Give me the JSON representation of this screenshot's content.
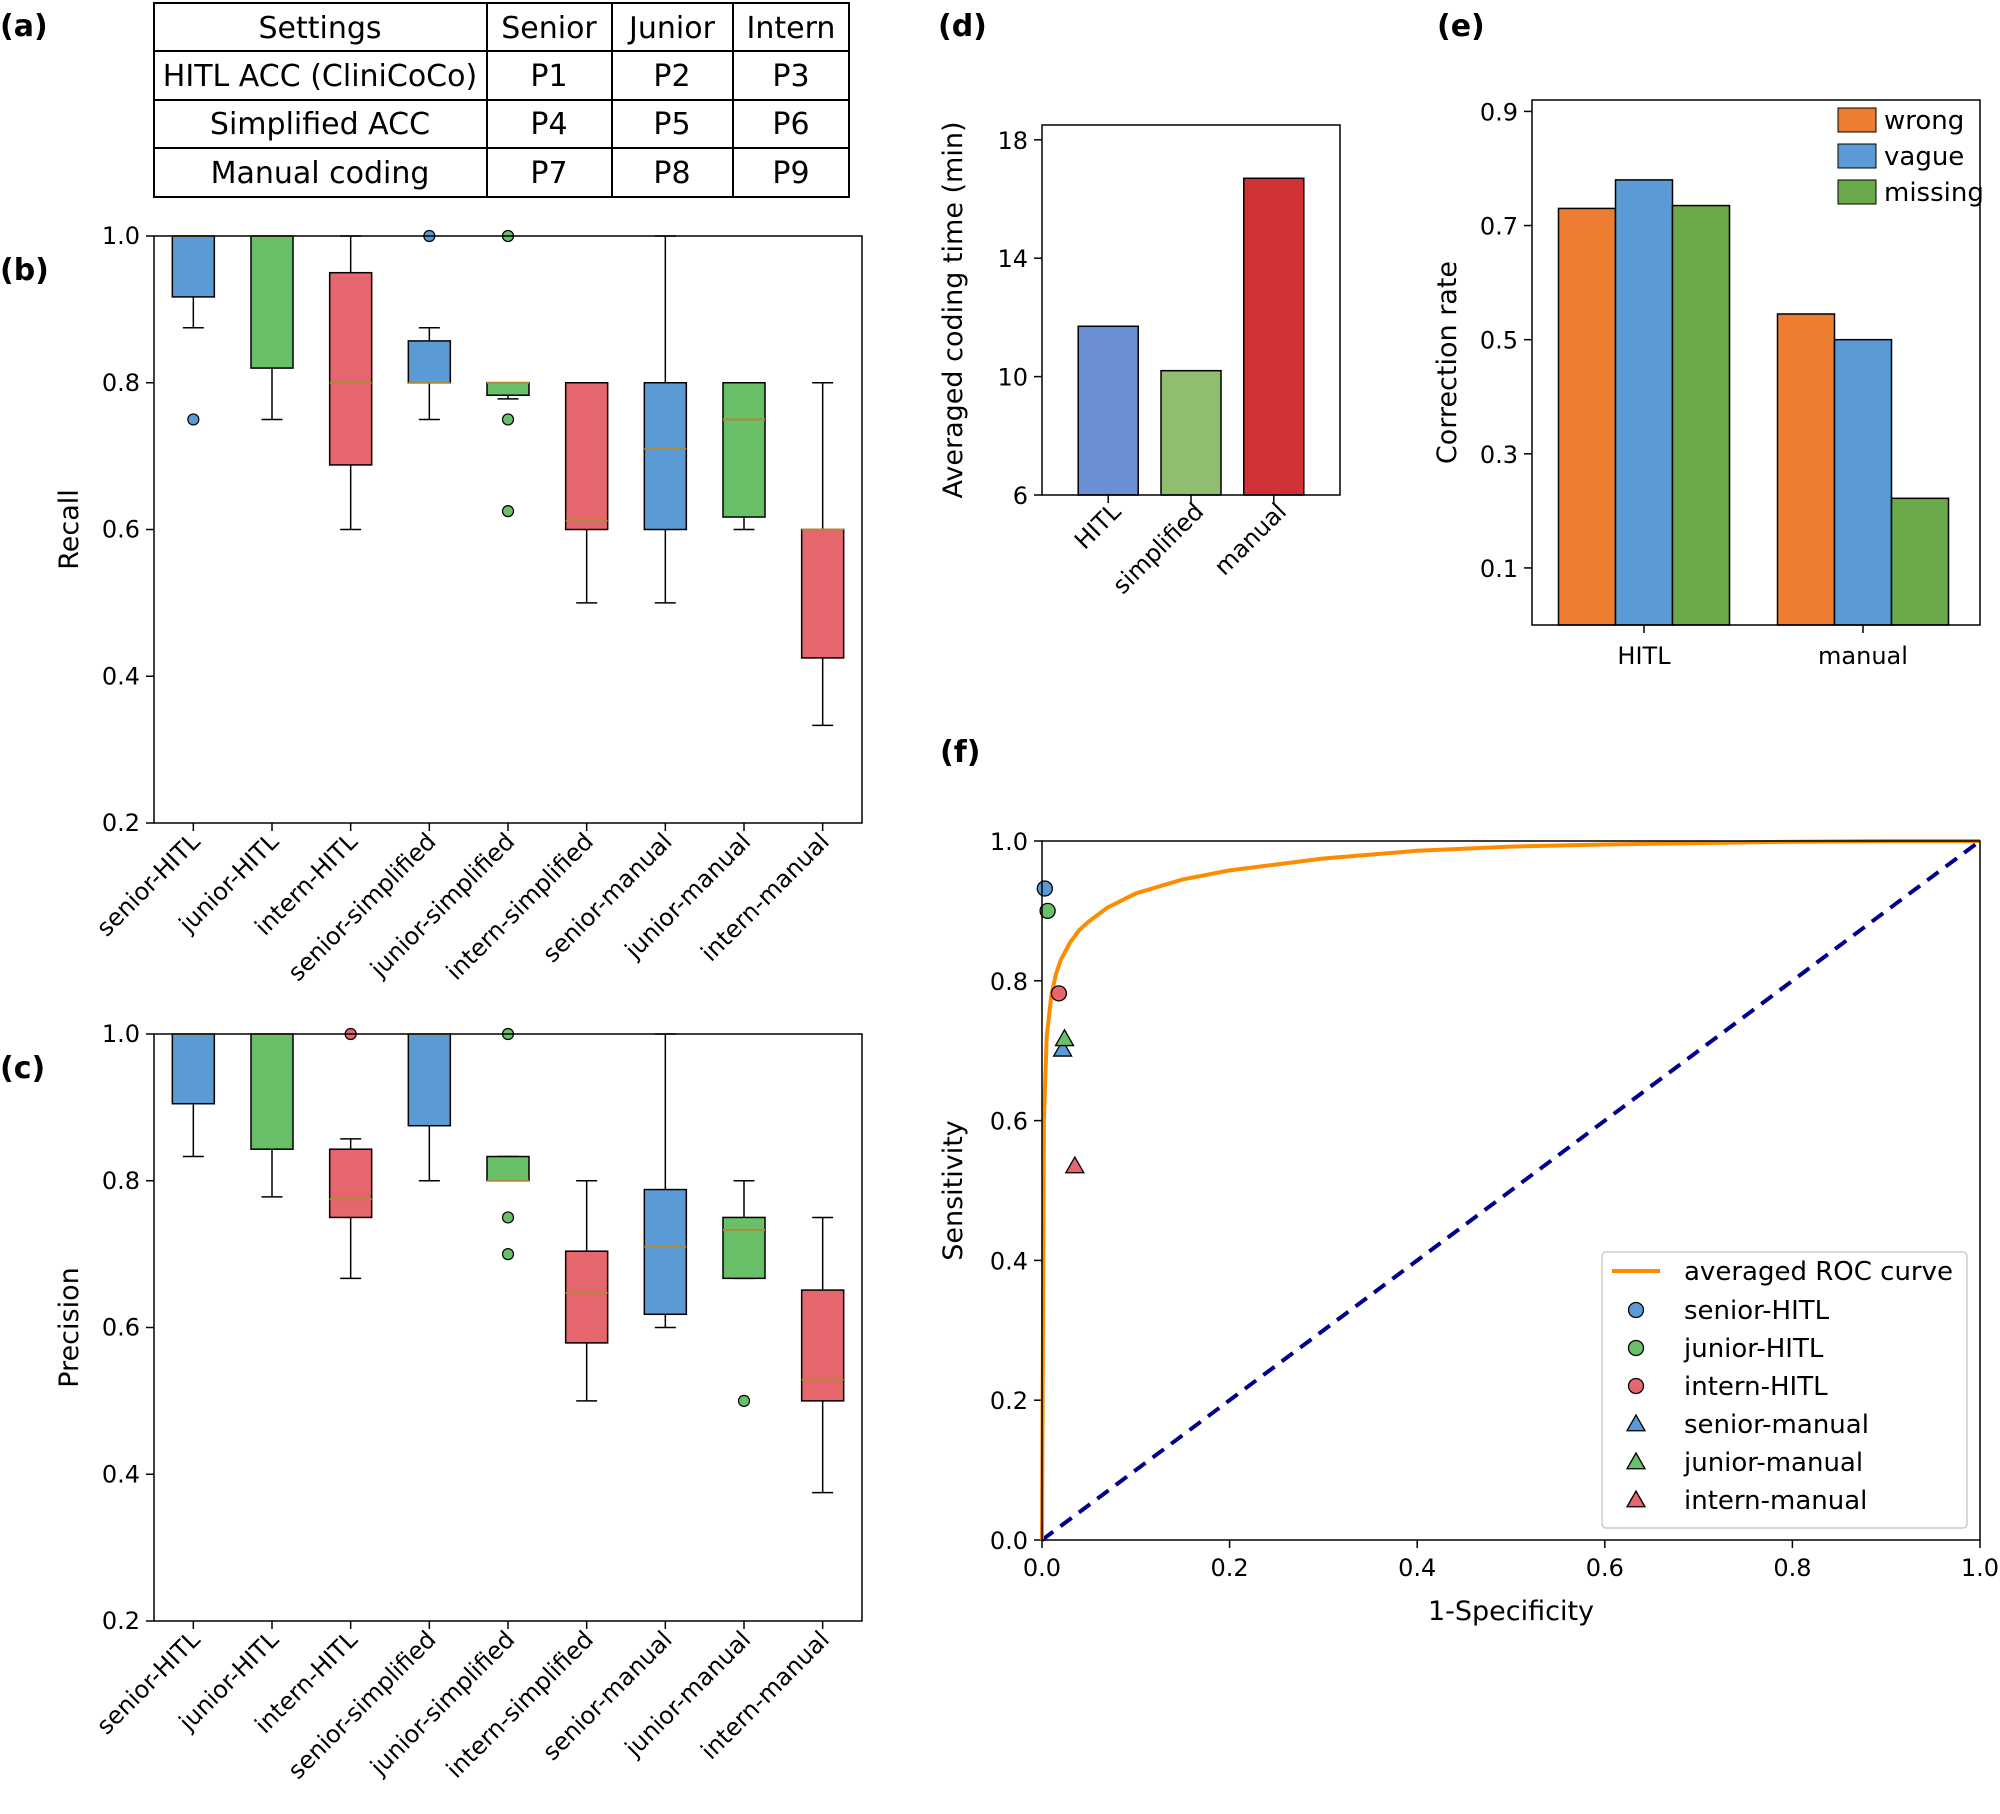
{
  "panels": {
    "a": "(a)",
    "b": "(b)",
    "c": "(c)",
    "d": "(d)",
    "e": "(e)",
    "f": "(f)"
  },
  "settings_table": {
    "header": [
      "Settings",
      "Senior",
      "Junior",
      "Intern"
    ],
    "rows": [
      [
        "HITL ACC (CliniCoCo)",
        "P1",
        "P2",
        "P3"
      ],
      [
        "Simplified ACC",
        "P4",
        "P5",
        "P6"
      ],
      [
        "Manual coding",
        "P7",
        "P8",
        "P9"
      ]
    ]
  },
  "colors": {
    "blue": "#5b9bd5",
    "green": "#6abf69",
    "red": "#e5666c",
    "orange": "#ed7d31",
    "median": "#b08a3a",
    "roc": "#ff8c00",
    "diag": "#00008b"
  },
  "chart_data": [
    {
      "id": "b",
      "type": "box",
      "ylabel": "Recall",
      "ylim": [
        0.2,
        1.0
      ],
      "yticks": [
        "0.2",
        "0.4",
        "0.6",
        "0.8",
        "1.0"
      ],
      "categories": [
        "senior-HITL",
        "junior-HITL",
        "intern-HITL",
        "senior-simplified",
        "junior-simplified",
        "intern-simplified",
        "senior-manual",
        "junior-manual",
        "intern-manual"
      ],
      "box_colors": [
        "blue",
        "green",
        "red",
        "blue",
        "green",
        "red",
        "blue",
        "green",
        "red"
      ],
      "boxes": [
        {
          "q1": 0.917,
          "median": 1.0,
          "q3": 1.0,
          "whislo": 0.875,
          "whishi": 1.0,
          "fliers": [
            0.75
          ]
        },
        {
          "q1": 0.82,
          "median": 1.0,
          "q3": 1.0,
          "whislo": 0.75,
          "whishi": 1.0,
          "fliers": []
        },
        {
          "q1": 0.688,
          "median": 0.8,
          "q3": 0.95,
          "whislo": 0.6,
          "whishi": 1.0,
          "fliers": []
        },
        {
          "q1": 0.8,
          "median": 0.8,
          "q3": 0.857,
          "whislo": 0.75,
          "whishi": 0.875,
          "fliers": [
            1.0
          ]
        },
        {
          "q1": 0.783,
          "median": 0.8,
          "q3": 0.8,
          "whislo": 0.778,
          "whishi": 0.8,
          "fliers": [
            1.0,
            0.75,
            0.625
          ]
        },
        {
          "q1": 0.6,
          "median": 0.612,
          "q3": 0.8,
          "whislo": 0.5,
          "whishi": 0.8,
          "fliers": []
        },
        {
          "q1": 0.6,
          "median": 0.71,
          "q3": 0.8,
          "whislo": 0.5,
          "whishi": 1.0,
          "fliers": []
        },
        {
          "q1": 0.617,
          "median": 0.75,
          "q3": 0.8,
          "whislo": 0.6,
          "whishi": 0.8,
          "fliers": []
        },
        {
          "q1": 0.425,
          "median": 0.6,
          "q3": 0.6,
          "whislo": 0.333,
          "whishi": 0.8,
          "fliers": []
        }
      ]
    },
    {
      "id": "c",
      "type": "box",
      "ylabel": "Precision",
      "ylim": [
        0.2,
        1.0
      ],
      "yticks": [
        "0.2",
        "0.4",
        "0.6",
        "0.8",
        "1.0"
      ],
      "categories": [
        "senior-HITL",
        "junior-HITL",
        "intern-HITL",
        "senior-simplified",
        "junior-simplified",
        "intern-simplified",
        "senior-manual",
        "junior-manual",
        "intern-manual"
      ],
      "box_colors": [
        "blue",
        "green",
        "red",
        "blue",
        "green",
        "red",
        "blue",
        "green",
        "red"
      ],
      "boxes": [
        {
          "q1": 0.905,
          "median": 1.0,
          "q3": 1.0,
          "whislo": 0.833,
          "whishi": 1.0,
          "fliers": []
        },
        {
          "q1": 0.843,
          "median": 1.0,
          "q3": 1.0,
          "whislo": 0.778,
          "whishi": 1.0,
          "fliers": []
        },
        {
          "q1": 0.75,
          "median": 0.775,
          "q3": 0.843,
          "whislo": 0.667,
          "whishi": 0.857,
          "fliers": [
            1.0
          ]
        },
        {
          "q1": 0.875,
          "median": 1.0,
          "q3": 1.0,
          "whislo": 0.8,
          "whishi": 1.0,
          "fliers": []
        },
        {
          "q1": 0.8,
          "median": 0.8,
          "q3": 0.833,
          "whislo": 0.8,
          "whishi": 0.833,
          "fliers": [
            1.0,
            0.75,
            0.7
          ]
        },
        {
          "q1": 0.579,
          "median": 0.647,
          "q3": 0.704,
          "whislo": 0.5,
          "whishi": 0.8,
          "fliers": []
        },
        {
          "q1": 0.618,
          "median": 0.71,
          "q3": 0.788,
          "whislo": 0.6,
          "whishi": 1.0,
          "fliers": []
        },
        {
          "q1": 0.667,
          "median": 0.733,
          "q3": 0.75,
          "whislo": 0.667,
          "whishi": 0.8,
          "fliers": [
            0.5
          ]
        },
        {
          "q1": 0.5,
          "median": 0.529,
          "q3": 0.651,
          "whislo": 0.375,
          "whishi": 0.75,
          "fliers": []
        }
      ]
    },
    {
      "id": "d",
      "type": "bar",
      "ylabel": "Averaged coding time (min)",
      "ylim": [
        6,
        18.5
      ],
      "yticks": [
        6,
        10,
        14,
        18
      ],
      "categories": [
        "HITL",
        "simplified",
        "manual"
      ],
      "values": [
        11.7,
        10.2,
        16.7
      ],
      "bar_colors": [
        "#6b8fd4",
        "#8fbf6e",
        "#d03236"
      ]
    },
    {
      "id": "e",
      "type": "bar",
      "ylabel": "Correction rate",
      "ylim": [
        0.0,
        0.92
      ],
      "yticks": [
        "0.1",
        "0.3",
        "0.5",
        "0.7",
        "0.9"
      ],
      "categories": [
        "HITL",
        "manual"
      ],
      "series": [
        {
          "name": "wrong",
          "values": [
            0.73,
            0.545
          ],
          "color": "#ed7d31"
        },
        {
          "name": "vague",
          "values": [
            0.78,
            0.5
          ],
          "color": "#5b9bd5"
        },
        {
          "name": "missing",
          "values": [
            0.735,
            0.222
          ],
          "color": "#6aaa48"
        }
      ],
      "legend": "top-right"
    },
    {
      "id": "f",
      "type": "line",
      "xlabel": "1-Specificity",
      "ylabel": "Sensitivity",
      "xlim": [
        0.0,
        1.0
      ],
      "ylim": [
        0.0,
        1.0
      ],
      "xticks": [
        "0.0",
        "0.2",
        "0.4",
        "0.6",
        "0.8",
        "1.0"
      ],
      "yticks": [
        "0.0",
        "0.2",
        "0.4",
        "0.6",
        "0.8",
        "1.0"
      ],
      "roc_curve": {
        "name": "averaged ROC curve",
        "x": [
          0.0,
          0.002,
          0.005,
          0.01,
          0.015,
          0.02,
          0.03,
          0.04,
          0.05,
          0.07,
          0.1,
          0.15,
          0.2,
          0.3,
          0.4,
          0.5,
          0.6,
          0.7,
          0.8,
          0.9,
          1.0
        ],
        "y": [
          0.0,
          0.6,
          0.72,
          0.78,
          0.81,
          0.83,
          0.855,
          0.873,
          0.885,
          0.905,
          0.925,
          0.945,
          0.958,
          0.975,
          0.986,
          0.992,
          0.995,
          0.997,
          0.999,
          1.0,
          1.0
        ]
      },
      "diagonal": {
        "x": [
          0.0,
          1.0
        ],
        "y": [
          0.0,
          1.0
        ]
      },
      "points": [
        {
          "name": "senior-HITL",
          "x": 0.003,
          "y": 0.932,
          "marker": "circle",
          "color": "blue"
        },
        {
          "name": "junior-HITL",
          "x": 0.006,
          "y": 0.9,
          "marker": "circle",
          "color": "green"
        },
        {
          "name": "intern-HITL",
          "x": 0.018,
          "y": 0.782,
          "marker": "circle",
          "color": "red"
        },
        {
          "name": "senior-manual",
          "x": 0.022,
          "y": 0.702,
          "marker": "triangle",
          "color": "blue"
        },
        {
          "name": "junior-manual",
          "x": 0.024,
          "y": 0.717,
          "marker": "triangle",
          "color": "green"
        },
        {
          "name": "intern-manual",
          "x": 0.035,
          "y": 0.535,
          "marker": "triangle",
          "color": "red"
        }
      ],
      "legend": "lower-right"
    }
  ]
}
